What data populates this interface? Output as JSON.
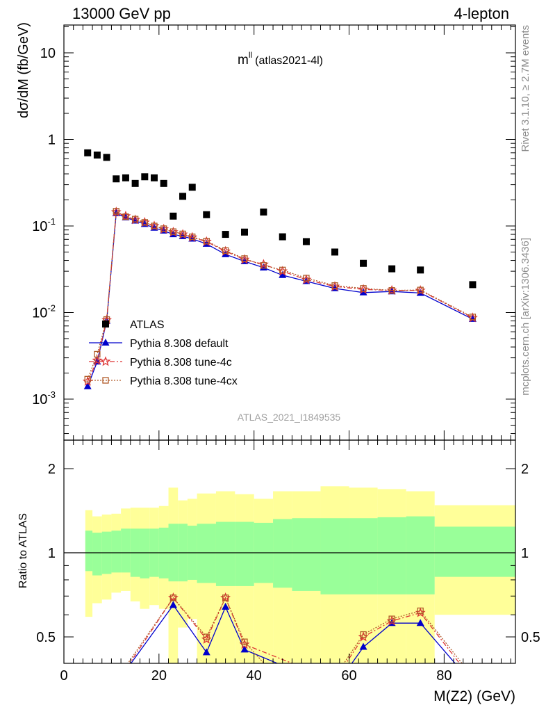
{
  "header": {
    "left": "13000 GeV pp",
    "right": "4-lepton"
  },
  "plot_title": {
    "main": "m",
    "sup": "ll",
    "sub": "(atlas2021-4l)"
  },
  "side_labels": {
    "rivet": "Rivet 3.1.10, ≥ 2.7M events",
    "mcplots": "mcplots.cern.ch [arXiv:1306.3436]"
  },
  "watermark": "ATLAS_2021_I1849535",
  "axes": {
    "ylabel_main": "dσ/dM (fb/GeV)",
    "ylabel_ratio": "Ratio to ATLAS",
    "xlabel": "M(Z2) (GeV)",
    "x_ticks": [
      "0",
      "20",
      "40",
      "60",
      "80"
    ],
    "y_main_ticks": [
      {
        "base": "10",
        "exp": "-3"
      },
      {
        "base": "10",
        "exp": "-2"
      },
      {
        "base": "10",
        "exp": "-1"
      },
      {
        "base": "1",
        "exp": ""
      },
      {
        "base": "10",
        "exp": ""
      }
    ],
    "y_ratio_ticks": [
      "0.5",
      "1",
      "2"
    ]
  },
  "legend": [
    {
      "label": "ATLAS",
      "color": "#000000"
    },
    {
      "label": "Pythia 8.308 default",
      "color": "#0000cc"
    },
    {
      "label": "Pythia 8.308 tune-4c",
      "color": "#dd3333"
    },
    {
      "label": "Pythia 8.308 tune-4cx",
      "color": "#b05a28"
    }
  ],
  "chart_data": [
    {
      "type": "scatter",
      "panel": "main",
      "xlim": [
        0,
        95
      ],
      "ylim": [
        0.0003,
        20
      ],
      "yscale": "log",
      "xlabel": "M(Z2) (GeV)",
      "ylabel": "dσ/dM (fb/GeV)",
      "series": [
        {
          "name": "ATLAS",
          "color": "#000000",
          "marker": "square",
          "x": [
            5,
            7,
            9,
            11,
            13,
            15,
            17,
            19,
            21,
            23,
            25,
            27,
            30,
            34,
            38,
            42,
            46,
            51,
            57,
            63,
            69,
            75,
            86
          ],
          "values": [
            0.7,
            0.66,
            0.62,
            0.35,
            0.36,
            0.31,
            0.37,
            0.36,
            0.31,
            0.13,
            0.22,
            0.28,
            0.135,
            0.08,
            0.085,
            0.145,
            0.075,
            0.066,
            0.05,
            0.037,
            0.032,
            0.031,
            0.021
          ]
        },
        {
          "name": "Pythia 8.308 default",
          "color": "#0000cc",
          "marker": "triangle",
          "x": [
            5,
            7,
            9,
            11,
            13,
            15,
            17,
            19,
            21,
            23,
            25,
            27,
            30,
            34,
            38,
            42,
            46,
            51,
            57,
            63,
            69,
            75,
            86
          ],
          "values": [
            0.0014,
            0.0027,
            0.008,
            0.14,
            0.125,
            0.115,
            0.105,
            0.095,
            0.088,
            0.08,
            0.076,
            0.071,
            0.062,
            0.047,
            0.039,
            0.033,
            0.027,
            0.023,
            0.019,
            0.017,
            0.0175,
            0.0168,
            0.0084
          ]
        },
        {
          "name": "Pythia 8.308 tune-4c",
          "color": "#dd3333",
          "marker": "star",
          "x": [
            5,
            7,
            9,
            11,
            13,
            15,
            17,
            19,
            21,
            23,
            25,
            27,
            30,
            34,
            38,
            42,
            46,
            51,
            57,
            63,
            69,
            75,
            86
          ],
          "values": [
            0.0016,
            0.0028,
            0.0082,
            0.145,
            0.13,
            0.118,
            0.11,
            0.1,
            0.092,
            0.085,
            0.08,
            0.074,
            0.066,
            0.051,
            0.041,
            0.036,
            0.03,
            0.024,
            0.02,
            0.0185,
            0.018,
            0.018,
            0.0087
          ]
        },
        {
          "name": "Pythia 8.308 tune-4cx",
          "color": "#b05a28",
          "marker": "open-square",
          "x": [
            5,
            7,
            9,
            11,
            13,
            15,
            17,
            19,
            21,
            23,
            25,
            27,
            30,
            34,
            38,
            42,
            46,
            51,
            57,
            63,
            69,
            75,
            86
          ],
          "values": [
            0.0017,
            0.0033,
            0.0083,
            0.148,
            0.128,
            0.12,
            0.11,
            0.1,
            0.093,
            0.086,
            0.081,
            0.075,
            0.067,
            0.052,
            0.042,
            0.035,
            0.031,
            0.025,
            0.0205,
            0.019,
            0.018,
            0.0182,
            0.0089
          ]
        }
      ]
    },
    {
      "type": "line",
      "panel": "ratio",
      "xlim": [
        0,
        95
      ],
      "ylim": [
        0.35,
        2.4
      ],
      "yscale": "log",
      "xlabel": "M(Z2) (GeV)",
      "ylabel": "Ratio to ATLAS",
      "reference_line": 1,
      "bands": {
        "edges": [
          4.5,
          6,
          8,
          10,
          12,
          14,
          16,
          18,
          20,
          22,
          24,
          26,
          28,
          32,
          36,
          40,
          44,
          48,
          54,
          60,
          66,
          72,
          78,
          95
        ],
        "stat_low": [
          0.86,
          0.83,
          0.84,
          0.85,
          0.85,
          0.82,
          0.81,
          0.82,
          0.81,
          0.79,
          0.79,
          0.8,
          0.78,
          0.76,
          0.76,
          0.78,
          0.75,
          0.73,
          0.71,
          0.71,
          0.71,
          0.71,
          0.82
        ],
        "stat_high": [
          1.2,
          1.18,
          1.19,
          1.2,
          1.22,
          1.22,
          1.22,
          1.22,
          1.23,
          1.27,
          1.27,
          1.25,
          1.27,
          1.29,
          1.29,
          1.28,
          1.32,
          1.33,
          1.33,
          1.33,
          1.34,
          1.35,
          1.24
        ],
        "total_low": [
          0.59,
          0.66,
          0.68,
          0.72,
          0.73,
          0.67,
          0.63,
          0.65,
          0.63,
          0.35,
          0.54,
          0.58,
          0.35,
          0.35,
          0.35,
          0.4,
          0.35,
          0.35,
          0.35,
          0.35,
          0.35,
          0.35,
          0.6
        ],
        "total_high": [
          1.42,
          1.35,
          1.37,
          1.38,
          1.44,
          1.45,
          1.45,
          1.45,
          1.47,
          1.71,
          1.54,
          1.56,
          1.63,
          1.66,
          1.62,
          1.56,
          1.66,
          1.66,
          1.73,
          1.71,
          1.69,
          1.66,
          1.48
        ]
      },
      "series": [
        {
          "name": "Pythia 8.308 default",
          "color": "#0000cc",
          "x": [
            11,
            23,
            30,
            34,
            38,
            57,
            63,
            69,
            75,
            86
          ],
          "values": [
            0.34,
            0.65,
            0.44,
            0.64,
            0.45,
            0.33,
            0.46,
            0.56,
            0.56,
            0.34
          ]
        },
        {
          "name": "Pythia 8.308 tune-4c",
          "color": "#dd3333",
          "x": [
            11,
            23,
            30,
            34,
            38,
            57,
            63,
            69,
            75,
            86
          ],
          "values": [
            0.34,
            0.69,
            0.49,
            0.69,
            0.47,
            0.35,
            0.5,
            0.57,
            0.61,
            0.35
          ]
        },
        {
          "name": "Pythia 8.308 tune-4cx",
          "color": "#b05a28",
          "x": [
            11,
            23,
            30,
            34,
            38,
            46,
            57,
            63,
            69,
            75,
            86
          ],
          "values": [
            0.35,
            0.69,
            0.5,
            0.69,
            0.48,
            0.34,
            0.36,
            0.51,
            0.58,
            0.62,
            0.36
          ]
        }
      ]
    }
  ]
}
